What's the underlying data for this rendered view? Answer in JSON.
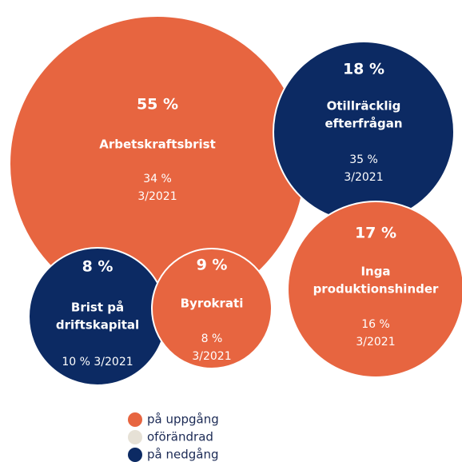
{
  "chart_data": {
    "type": "bubble",
    "categories": [
      [
        "Arbetskraftsbrist"
      ],
      [
        "Otillräcklig",
        "efterfrågan"
      ],
      [
        "Inga",
        "produktionshinder"
      ],
      [
        "Brist på",
        "driftskapital"
      ],
      [
        "Byrokrati"
      ]
    ],
    "values": [
      55,
      18,
      17,
      8,
      9
    ],
    "value_labels": [
      "55 %",
      "18 %",
      "17 %",
      "8 %",
      "9 %"
    ],
    "previous_labels": [
      [
        "34 %",
        "3/2021"
      ],
      [
        "35 %",
        "3/2021"
      ],
      [
        "16 %",
        "3/2021"
      ],
      [
        "10 % 3/2021"
      ],
      [
        "8 %",
        "3/2021"
      ]
    ],
    "colors": [
      "#e76540",
      "#0c2a63",
      "#e76540",
      "#0c2a63",
      "#e76540"
    ],
    "legend": [
      {
        "label": "på uppgång",
        "color": "#e76540"
      },
      {
        "label": "oförändrad",
        "color": "#e6e1d6"
      },
      {
        "label": "på nedgång",
        "color": "#0c2a63"
      }
    ]
  }
}
